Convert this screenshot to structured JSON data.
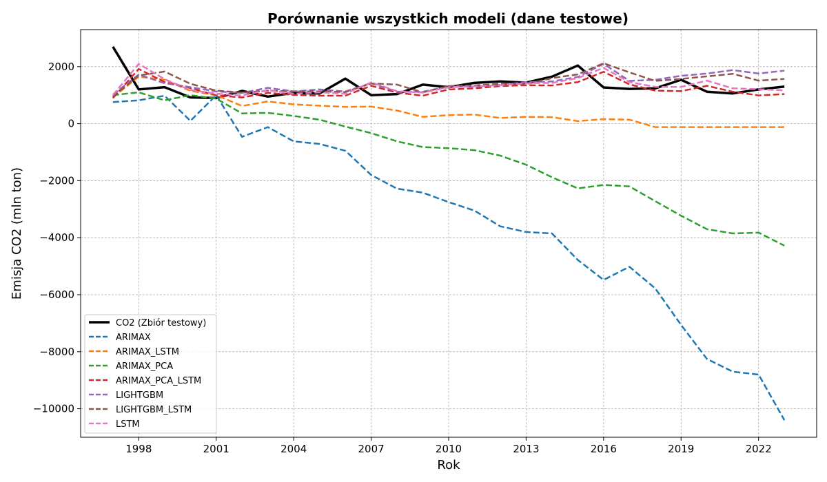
{
  "chart_data": {
    "type": "line",
    "title": "Porównanie wszystkich modeli (dane testowe)",
    "xlabel": "Rok",
    "ylabel": "Emisja CO2 (mln ton)",
    "xlim": [
      1995.75,
      2024.25
    ],
    "ylim": [
      -11000,
      3300
    ],
    "x_ticks": [
      1998,
      2001,
      2004,
      2007,
      2010,
      2013,
      2016,
      2019,
      2022
    ],
    "y_ticks": [
      2000,
      0,
      -2000,
      -4000,
      -6000,
      -8000,
      -10000
    ],
    "y_tick_labels": [
      "2000",
      "0",
      "−2000",
      "−4000",
      "−6000",
      "−8000",
      "−10000"
    ],
    "grid": true,
    "legend_position": "lower-left",
    "x": [
      1997,
      1998,
      1999,
      2000,
      2001,
      2002,
      2003,
      2004,
      2005,
      2006,
      2007,
      2008,
      2009,
      2010,
      2011,
      2012,
      2013,
      2014,
      2015,
      2016,
      2017,
      2018,
      2019,
      2020,
      2021,
      2022,
      2023
    ],
    "series": [
      {
        "name": "CO2 (Zbiór testowy)",
        "color": "#000000",
        "style": "solid",
        "width": 3.5,
        "values": [
          2700,
          1200,
          1280,
          920,
          900,
          1150,
          950,
          1080,
          1060,
          1580,
          1000,
          1040,
          1370,
          1280,
          1430,
          1480,
          1440,
          1650,
          2040,
          1270,
          1220,
          1240,
          1540,
          1120,
          1060,
          1200,
          1300
        ]
      },
      {
        "name": "ARIMAX",
        "color": "#1f77b4",
        "style": "dashed",
        "width": 2.5,
        "values": [
          760,
          820,
          980,
          100,
          1000,
          -460,
          -120,
          -620,
          -710,
          -950,
          -1800,
          -2280,
          -2420,
          -2750,
          -3050,
          -3600,
          -3800,
          -3850,
          -4780,
          -5480,
          -5020,
          -5780,
          -7060,
          -8250,
          -8700,
          -8800,
          -10400
        ]
      },
      {
        "name": "ARIMAX_LSTM",
        "color": "#ff7f0e",
        "style": "dashed",
        "width": 2.5,
        "values": [
          920,
          1650,
          1540,
          1150,
          1000,
          620,
          780,
          680,
          630,
          590,
          600,
          460,
          240,
          300,
          320,
          200,
          240,
          230,
          90,
          160,
          140,
          -120,
          -120,
          -120,
          -120,
          -120,
          -120
        ]
      },
      {
        "name": "ARIMAX_PCA",
        "color": "#2ca02c",
        "style": "dashed",
        "width": 2.5,
        "values": [
          1000,
          1100,
          820,
          1000,
          880,
          360,
          380,
          270,
          140,
          -100,
          -330,
          -620,
          -820,
          -860,
          -930,
          -1120,
          -1440,
          -1880,
          -2270,
          -2150,
          -2200,
          -2720,
          -3230,
          -3700,
          -3850,
          -3820,
          -4280
        ]
      },
      {
        "name": "ARIMAX_PCA_LSTM",
        "color": "#d62728",
        "style": "dashed",
        "width": 2.5,
        "values": [
          900,
          1920,
          1460,
          1250,
          990,
          920,
          1080,
          1010,
          980,
          980,
          1330,
          1090,
          980,
          1200,
          1240,
          1320,
          1350,
          1340,
          1460,
          1820,
          1380,
          1160,
          1140,
          1330,
          1120,
          990,
          1040
        ]
      },
      {
        "name": "LIGHTGBM",
        "color": "#9467bd",
        "style": "dashed",
        "width": 2.5,
        "values": [
          1020,
          1720,
          1420,
          1280,
          1130,
          1080,
          1260,
          1130,
          1200,
          1130,
          1420,
          1120,
          1120,
          1300,
          1300,
          1360,
          1460,
          1480,
          1640,
          2100,
          1500,
          1540,
          1680,
          1760,
          1880,
          1760,
          1860
        ]
      },
      {
        "name": "LIGHTGBM_LSTM",
        "color": "#8c564b",
        "style": "dashed",
        "width": 2.5,
        "values": [
          950,
          1690,
          1830,
          1400,
          1160,
          1090,
          1160,
          1130,
          1130,
          1110,
          1410,
          1370,
          1100,
          1320,
          1340,
          1400,
          1390,
          1600,
          1730,
          2120,
          1800,
          1500,
          1570,
          1660,
          1750,
          1510,
          1570
        ]
      },
      {
        "name": "LSTM",
        "color": "#e377c2",
        "style": "dashed",
        "width": 2.5,
        "values": [
          1000,
          2100,
          1560,
          1180,
          1050,
          990,
          1180,
          1050,
          1100,
          1050,
          1450,
          1140,
          1090,
          1280,
          1310,
          1350,
          1420,
          1430,
          1600,
          1960,
          1460,
          1290,
          1290,
          1510,
          1240,
          1210,
          1170
        ]
      }
    ]
  }
}
